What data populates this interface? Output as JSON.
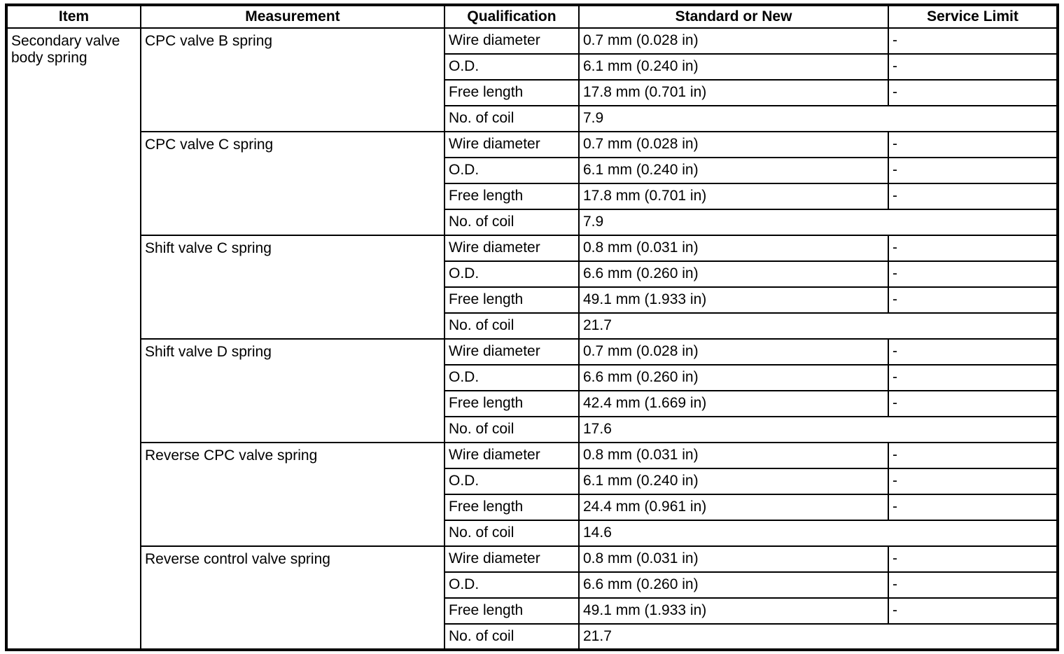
{
  "table": {
    "headers": [
      "Item",
      "Measurement",
      "Qualification",
      "Standard or New",
      "Service Limit"
    ],
    "item": "Secondary valve body spring",
    "groups": [
      {
        "measurement": "CPC valve B spring",
        "rows": [
          {
            "qualification": "Wire diameter",
            "standard": "0.7 mm (0.028 in)",
            "service_limit": "-"
          },
          {
            "qualification": "O.D.",
            "standard": "6.1 mm (0.240 in)",
            "service_limit": "-"
          },
          {
            "qualification": "Free length",
            "standard": "17.8 mm (0.701 in)",
            "service_limit": "-"
          },
          {
            "qualification": "No. of coil",
            "standard": "7.9",
            "service_limit": null
          }
        ]
      },
      {
        "measurement": "CPC valve C spring",
        "rows": [
          {
            "qualification": "Wire diameter",
            "standard": "0.7 mm (0.028 in)",
            "service_limit": "-"
          },
          {
            "qualification": "O.D.",
            "standard": "6.1 mm (0.240 in)",
            "service_limit": "-"
          },
          {
            "qualification": "Free length",
            "standard": "17.8 mm (0.701 in)",
            "service_limit": "-"
          },
          {
            "qualification": "No. of coil",
            "standard": "7.9",
            "service_limit": null
          }
        ]
      },
      {
        "measurement": "Shift valve C spring",
        "rows": [
          {
            "qualification": "Wire diameter",
            "standard": "0.8 mm (0.031 in)",
            "service_limit": "-"
          },
          {
            "qualification": "O.D.",
            "standard": "6.6 mm (0.260 in)",
            "service_limit": "-"
          },
          {
            "qualification": "Free length",
            "standard": "49.1 mm (1.933 in)",
            "service_limit": "-"
          },
          {
            "qualification": "No. of coil",
            "standard": "21.7",
            "service_limit": null
          }
        ]
      },
      {
        "measurement": "Shift valve D spring",
        "rows": [
          {
            "qualification": "Wire diameter",
            "standard": "0.7 mm (0.028 in)",
            "service_limit": "-"
          },
          {
            "qualification": "O.D.",
            "standard": "6.6 mm (0.260 in)",
            "service_limit": "-"
          },
          {
            "qualification": "Free length",
            "standard": "42.4 mm (1.669 in)",
            "service_limit": "-"
          },
          {
            "qualification": "No. of coil",
            "standard": "17.6",
            "service_limit": null
          }
        ]
      },
      {
        "measurement": "Reverse CPC valve spring",
        "rows": [
          {
            "qualification": "Wire diameter",
            "standard": "0.8 mm (0.031 in)",
            "service_limit": "-"
          },
          {
            "qualification": "O.D.",
            "standard": "6.1 mm (0.240 in)",
            "service_limit": "-"
          },
          {
            "qualification": "Free length",
            "standard": "24.4 mm (0.961 in)",
            "service_limit": "-"
          },
          {
            "qualification": "No. of coil",
            "standard": "14.6",
            "service_limit": null
          }
        ]
      },
      {
        "measurement": "Reverse control valve spring",
        "rows": [
          {
            "qualification": "Wire diameter",
            "standard": "0.8 mm (0.031 in)",
            "service_limit": "-"
          },
          {
            "qualification": "O.D.",
            "standard": "6.6 mm (0.260 in)",
            "service_limit": "-"
          },
          {
            "qualification": "Free length",
            "standard": "49.1 mm (1.933 in)",
            "service_limit": "-"
          },
          {
            "qualification": "No. of coil",
            "standard": "21.7",
            "service_limit": null
          }
        ]
      }
    ]
  }
}
